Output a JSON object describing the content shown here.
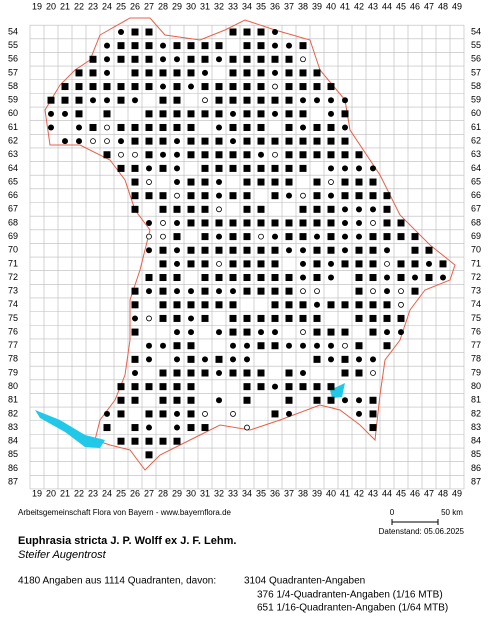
{
  "map": {
    "grid_columns": [
      19,
      20,
      21,
      22,
      23,
      24,
      25,
      26,
      27,
      28,
      29,
      30,
      31,
      32,
      33,
      34,
      35,
      36,
      37,
      38,
      39,
      40,
      41,
      42,
      43,
      44,
      45,
      46,
      47,
      48,
      49
    ],
    "grid_rows": [
      54,
      55,
      56,
      57,
      58,
      59,
      60,
      61,
      62,
      63,
      64,
      65,
      66,
      67,
      68,
      69,
      70,
      71,
      72,
      73,
      74,
      75,
      76,
      77,
      78,
      79,
      80,
      81,
      82,
      83,
      84,
      85,
      86,
      87
    ],
    "credit": "Arbeitsgemeinschaft Flora von Bayern - www.bayernflora.de",
    "scale_start": "0",
    "scale_end": "50 km",
    "date": "Datenstand: 05.06.2025"
  },
  "species": {
    "scientific_name": "Euphrasia stricta J. P. Wolff ex J. F. Lehm.",
    "common_name": "Steifer Augentrost"
  },
  "summary": {
    "total": "4180 Angaben aus 1114 Quadranten, davon:",
    "lines": [
      "3104 Quadranten-Angaben",
      "376 1/4-Quadranten-Angaben (1/16 MTB)",
      "651 1/16-Quadranten-Angaben (1/64 MTB)"
    ]
  }
}
